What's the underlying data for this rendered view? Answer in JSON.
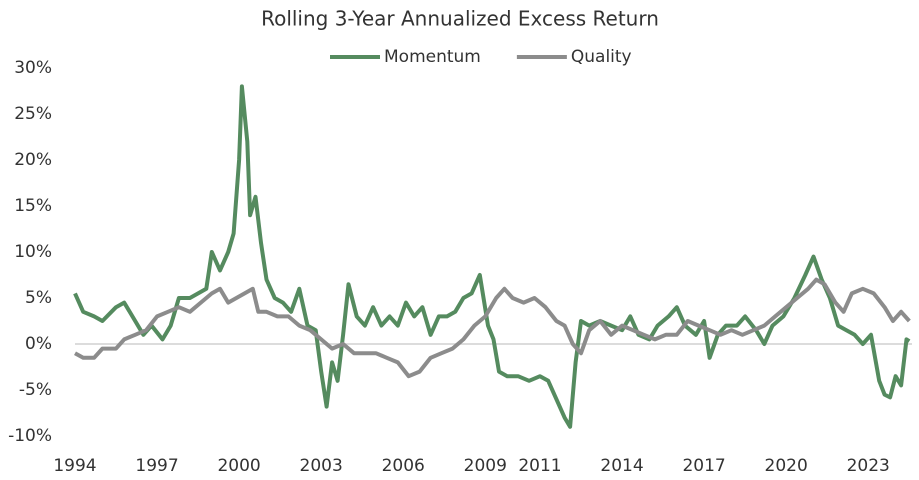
{
  "chart_data": {
    "type": "line",
    "title": "Rolling 3-Year Annualized Excess Return",
    "legend": "top",
    "series": [
      {
        "name": "Momentum",
        "color": "#558b5f",
        "x": [
          1994.0,
          1994.3,
          1994.7,
          1995.0,
          1995.5,
          1995.8,
          1996.2,
          1996.5,
          1996.8,
          1997.2,
          1997.5,
          1997.8,
          1998.2,
          1998.5,
          1998.8,
          1999.0,
          1999.3,
          1999.6,
          1999.8,
          2000.0,
          2000.1,
          2000.3,
          2000.4,
          2000.6,
          2000.8,
          2001.0,
          2001.3,
          2001.6,
          2001.9,
          2002.2,
          2002.5,
          2002.8,
          2003.0,
          2003.2,
          2003.4,
          2003.6,
          2003.8,
          2004.0,
          2004.3,
          2004.6,
          2004.9,
          2005.2,
          2005.5,
          2005.8,
          2006.1,
          2006.4,
          2006.7,
          2007.0,
          2007.3,
          2007.6,
          2007.9,
          2008.2,
          2008.5,
          2008.8,
          2009.1,
          2009.3,
          2009.5,
          2009.8,
          2010.2,
          2010.6,
          2011.0,
          2011.3,
          2011.6,
          2011.9,
          2012.1,
          2012.3,
          2012.5,
          2012.8,
          2013.2,
          2013.6,
          2014.0,
          2014.3,
          2014.6,
          2015.0,
          2015.3,
          2015.7,
          2016.0,
          2016.3,
          2016.7,
          2017.0,
          2017.2,
          2017.5,
          2017.8,
          2018.2,
          2018.5,
          2018.9,
          2019.2,
          2019.5,
          2019.9,
          2020.3,
          2020.7,
          2021.0,
          2021.3,
          2021.6,
          2021.9,
          2022.2,
          2022.5,
          2022.8,
          2023.1,
          2023.4,
          2023.6,
          2023.8,
          2024.0,
          2024.2,
          2024.4,
          2024.5
        ],
        "values": [
          5.5,
          3.5,
          3,
          2.5,
          4,
          4.5,
          2.5,
          1,
          2,
          0.5,
          2,
          5,
          5,
          5.5,
          6,
          10,
          8,
          10,
          12,
          20,
          28,
          22,
          14,
          16,
          11,
          7,
          5,
          4.5,
          3.5,
          6,
          2,
          1.5,
          -3,
          -6.8,
          -2,
          -4,
          1,
          6.5,
          3,
          2,
          4,
          2,
          3,
          2,
          4.5,
          3,
          4,
          1,
          3,
          3,
          3.5,
          5,
          5.5,
          7.5,
          2,
          0.5,
          -3,
          -3.5,
          -3.5,
          -4,
          -3.5,
          -4,
          -6,
          -8,
          -9,
          -2,
          2.5,
          2,
          2.5,
          2,
          1.5,
          3,
          1,
          0.5,
          2,
          3,
          4,
          2,
          1,
          2.5,
          -1.5,
          1,
          2,
          2,
          3,
          1.5,
          0,
          2,
          3,
          5,
          7.5,
          9.5,
          7,
          5,
          2,
          1.5,
          1,
          0,
          1,
          -4,
          -5.5,
          -5.8,
          -3.5,
          -4.5,
          0.5,
          0.3
        ]
      },
      {
        "name": "Quality",
        "color": "#8c8c8c",
        "x": [
          1994.0,
          1994.3,
          1994.7,
          1995.0,
          1995.5,
          1995.8,
          1996.2,
          1996.6,
          1997.0,
          1997.4,
          1997.8,
          1998.2,
          1998.6,
          1999.0,
          1999.3,
          1999.6,
          1999.9,
          2000.2,
          2000.5,
          2000.7,
          2001.0,
          2001.4,
          2001.8,
          2002.2,
          2002.6,
          2003.0,
          2003.4,
          2003.8,
          2004.2,
          2004.6,
          2005.0,
          2005.4,
          2005.8,
          2006.2,
          2006.6,
          2007.0,
          2007.4,
          2007.8,
          2008.2,
          2008.6,
          2009.0,
          2009.4,
          2009.7,
          2010.0,
          2010.4,
          2010.8,
          2011.2,
          2011.6,
          2011.9,
          2012.2,
          2012.5,
          2012.8,
          2013.2,
          2013.6,
          2014.0,
          2014.4,
          2014.8,
          2015.2,
          2015.6,
          2016.0,
          2016.4,
          2016.8,
          2017.2,
          2017.6,
          2018.0,
          2018.4,
          2018.8,
          2019.2,
          2019.6,
          2020.0,
          2020.4,
          2020.8,
          2021.1,
          2021.4,
          2021.8,
          2022.1,
          2022.4,
          2022.8,
          2023.2,
          2023.6,
          2023.9,
          2024.2,
          2024.5
        ],
        "values": [
          -1,
          -1.5,
          -1.5,
          -0.5,
          -0.5,
          0.5,
          1,
          1.5,
          3,
          3.5,
          4,
          3.5,
          4.5,
          5.5,
          6,
          4.5,
          5,
          5.5,
          6,
          3.5,
          3.5,
          3,
          3,
          2,
          1.5,
          0.5,
          -0.5,
          0,
          -1,
          -1,
          -1,
          -1.5,
          -2,
          -3.5,
          -3,
          -1.5,
          -1,
          -0.5,
          0.5,
          2,
          3,
          5,
          6,
          5,
          4.5,
          5,
          4,
          2.5,
          2,
          0,
          -1,
          1.5,
          2.5,
          1,
          2,
          1.5,
          1,
          0.5,
          1,
          1,
          2.5,
          2,
          1.5,
          1,
          1.5,
          1,
          1.5,
          2,
          3,
          4,
          5,
          6,
          7,
          6.5,
          4.5,
          3.5,
          5.5,
          6,
          5.5,
          4,
          2.5,
          3.5,
          2.5
        ]
      }
    ],
    "xlim": [
      1994,
      2024.6
    ],
    "xticks": [
      1994,
      1997,
      2000,
      2003,
      2006,
      2009,
      2011,
      2014,
      2017,
      2020,
      2023
    ],
    "ylim": [
      -10,
      30
    ],
    "yticks": [
      {
        "value": -10,
        "label": "-10%"
      },
      {
        "value": -5,
        "label": "-5%"
      },
      {
        "value": 0,
        "label": "0%"
      },
      {
        "value": 5,
        "label": "5%"
      },
      {
        "value": 10,
        "label": "10%"
      },
      {
        "value": 15,
        "label": "15%"
      },
      {
        "value": 20,
        "label": "20%"
      },
      {
        "value": 25,
        "label": "25%"
      },
      {
        "value": 30,
        "label": "30%"
      }
    ],
    "grid": false
  }
}
